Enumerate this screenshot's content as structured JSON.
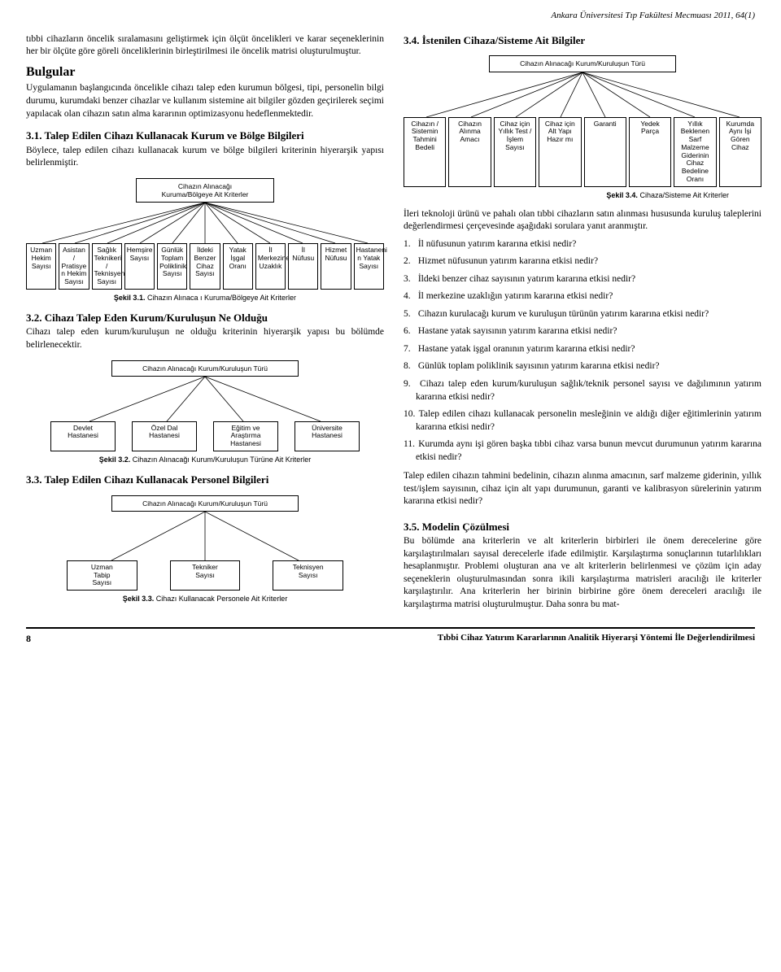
{
  "journal_header": "Ankara Üniversitesi Tıp Fakültesi Mecmuası 2011, 64(1)",
  "intro_para": "tıbbi cihazların öncelik sıralamasını geliştirmek için ölçüt öncelikleri ve karar seçeneklerinin her bir ölçüte göre göreli önceliklerinin birleştirilmesi ile öncelik matrisi oluşturulmuştur.",
  "bulgular_title": "Bulgular",
  "bulgular_para": "Uygulamanın başlangıcında öncelikle cihazı talep eden kurumun bölgesi, tipi, personelin bilgi durumu, kurumdaki benzer cihazlar ve kullanım sistemine ait bilgiler gözden geçirilerek seçimi yapılacak olan cihazın satın alma kararının optimizasyonu hedeflenmektedir.",
  "s31_title": "3.1. Talep Edilen Cihazı Kullanacak Kurum ve Bölge Bilgileri",
  "s31_para": "Böylece, talep edilen cihazı kullanacak kurum ve bölge bilgileri kriterinin hiyerarşik yapısı belirlenmiştir.",
  "tree31": {
    "root": "Cihazın Alınacağı\nKuruma/Bölgeye Ait Kriterler",
    "leaves": [
      "Uzman\nHekim\nSayısı",
      "Asistan /\nPratisye\nn Hekim\nSayısı",
      "Sağlık\nTeknikeri /\nTeknisyen\nSayısı",
      "Hemşire\nSayısı",
      "Günlük\nToplam\nPoliklinik\nSayısı",
      "İldeki\nBenzer\nCihaz\nSayısı",
      "Yatak\nİşgal\nOranı",
      "İl\nMerkezine\nUzaklık",
      "İl\nNüfusu",
      "Hizmet\nNüfusu",
      "Hastaneni\nn Yatak\nSayısı"
    ],
    "caption_bold": "Şekil 3.1.",
    "caption_rest": "Cihazın Alınaca ı Kuruma/Bölgeye Ait Kriterler"
  },
  "s32_title": "3.2. Cihazı Talep Eden Kurum/Kuruluşun Ne Olduğu",
  "s32_para": "Cihazı talep eden kurum/kuruluşun ne olduğu kriterinin hiyerarşik yapısı bu bölümde belirlenecektir.",
  "tree32": {
    "root": "Cihazın Alınacağı Kurum/Kuruluşun Türü",
    "leaves": [
      "Devlet\nHastanesi",
      "Özel Dal\nHastanesi",
      "Eğitim ve\nAraştırma\nHastanesi",
      "Üniversite\nHastanesi"
    ],
    "caption_bold": "Şekil 3.2.",
    "caption_rest": "Cihazın Alınacağı Kurum/Kuruluşun Türüne Ait Kriterler"
  },
  "s33_title": "3.3. Talep Edilen Cihazı Kullanacak Personel Bilgileri",
  "tree33": {
    "root": "Cihazın Alınacağı Kurum/Kuruluşun Türü",
    "leaves": [
      "Uzman\nTabip\nSayısı",
      "Tekniker\nSayısı",
      "Teknisyen\nSayısı"
    ],
    "caption_bold": "Şekil 3.3.",
    "caption_rest": "Cihazı Kullanacak Personele Ait Kriterler"
  },
  "s34_title": "3.4. İstenilen Cihaza/Sisteme Ait Bilgiler",
  "tree34": {
    "root": "Cihazın Alınacağı Kurum/Kuruluşun Türü",
    "leaves": [
      "Cihazın /\nSistemin\nTahmini\nBedeli",
      "Cihazın\nAlınma\nAmacı",
      "Cihaz için\nYıllık Test /\nİşlem\nSayısı",
      "Cihaz için\nAlt Yapı\nHazır mı",
      "Garanti",
      "Yedek\nParça",
      "Yıllık Beklenen\nSarf Malzeme\nGiderinin Cihaz\nBedeline Oranı",
      "Kurumda\nAynı İşi\nGören\nCihaz"
    ],
    "caption_bold": "Şekil 3.4.",
    "caption_rest": "Cihaza/Sisteme Ait Kriterler"
  },
  "s34_para": "İleri teknoloji ürünü ve pahalı olan tıbbi cihazların satın alınması hususunda kuruluş taleplerini değerlendirmesi çerçevesinde aşağıdaki sorulara yanıt aranmıştır.",
  "questions": [
    "İl nüfusunun yatırım kararına etkisi nedir?",
    "Hizmet nüfusunun yatırım kararına etkisi nedir?",
    "İldeki benzer cihaz sayısının yatırım kararına etkisi nedir?",
    "İl merkezine uzaklığın yatırım kararına etkisi nedir?",
    "Cihazın kurulacağı kurum ve kuruluşun türünün yatırım kararına etkisi nedir?",
    "Hastane yatak sayısının yatırım kararına etkisi nedir?",
    "Hastane yatak işgal oranının yatırım kararına etkisi nedir?",
    "Günlük toplam poliklinik sayısının yatırım kararına etkisi nedir?",
    "Cihazı talep eden kurum/kuruluşun sağlık/teknik personel sayısı ve dağılımının yatırım kararına etkisi nedir?",
    "Talep edilen cihazı kullanacak personelin mesleğinin ve aldığı diğer eğitimlerinin yatırım kararına etkisi nedir?",
    "Kurumda aynı işi gören başka tıbbi cihaz varsa bunun mevcut durumunun yatırım kararına etkisi nedir?"
  ],
  "post_q_para": "Talep edilen cihazın tahmini bedelinin, cihazın alınma amacının, sarf malzeme giderinin, yıllık test/işlem sayısının, cihaz için alt yapı durumunun, garanti ve kalibrasyon sürelerinin yatırım kararına etkisi nedir?",
  "s35_title": "3.5. Modelin Çözülmesi",
  "s35_para": "Bu bölümde ana kriterlerin ve alt kriterlerin birbirleri ile önem derecelerine göre karşılaştırılmaları sayısal derecelerle ifade edilmiştir. Karşılaştırma sonuçlarının tutarlılıkları hesaplanmıştır. Problemi oluşturan ana ve alt kriterlerin belirlenmesi ve çözüm için aday seçeneklerin oluşturulmasından sonra ikili karşılaştırma matrisleri aracılığı ile kriterler karşılaştırılır. Ana kriterlerin her birinin birbirine göre önem dereceleri aracılığı ile karşılaştırma matrisi oluşturulmuştur. Daha sonra bu mat-",
  "footer_page": "8",
  "footer_title": "Tıbbi Cihaz Yatırım Kararlarının Analitik Hiyerarşi Yöntemi İle Değerlendirilmesi"
}
